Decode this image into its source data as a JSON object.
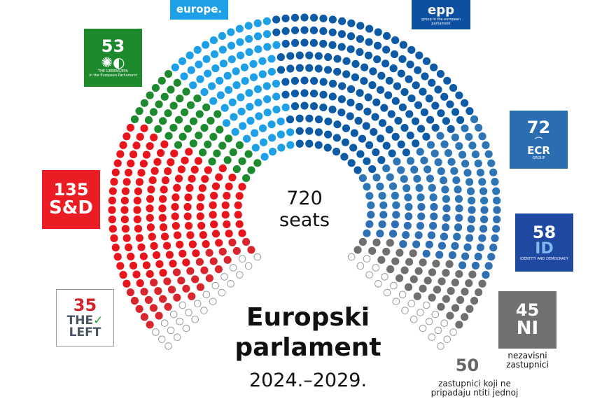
{
  "center": {
    "count": "720",
    "unit": "seats"
  },
  "title": {
    "line1": "Europski",
    "line2": "parlament",
    "years": "2024.–2029."
  },
  "labels": {
    "renew": {
      "text": "europe.",
      "color": "#1ea0e8"
    },
    "epp": {
      "text": "epp",
      "sub": "group in the european parliament",
      "color": "#0d4fa0"
    },
    "greens": {
      "count": "53",
      "text": "THE GREENS/EFA",
      "sub": "in the European Parliament",
      "color": "#1e8a2e"
    },
    "ecr": {
      "count": "72",
      "text": "ECR",
      "sub": "GROUP",
      "color": "#2a6db0"
    },
    "sd": {
      "count": "135",
      "text": "S&D",
      "color": "#ec1c24"
    },
    "id": {
      "count": "58",
      "text": "ID",
      "sub": "IDENTITY AND DEMOCRACY",
      "color": "#1f48a0"
    },
    "left": {
      "count": "35",
      "text1": "THE",
      "text2": "LEFT",
      "color": "#d2232a"
    },
    "ni": {
      "count": "45",
      "text": "NI",
      "desc1": "nezavisni",
      "desc2": "zastupnici",
      "color": "#707070"
    },
    "unaffiliated": {
      "count": "50",
      "desc1": "zastupnici koji ne",
      "desc2": "pripadaju ntiti jednoj"
    }
  },
  "chart_data": {
    "type": "parliament",
    "total": 720,
    "groups": [
      {
        "name": "unaffiliated",
        "seats": 25,
        "color": "#ffffff",
        "stroke": "#9a9a9a"
      },
      {
        "name": "The Left",
        "seats": 35,
        "color": "#d9262e"
      },
      {
        "name": "S&D",
        "seats": 135,
        "color": "#e8161c"
      },
      {
        "name": "Greens/EFA",
        "seats": 53,
        "color": "#1e8a2e"
      },
      {
        "name": "Renew Europe",
        "seats": 86,
        "color": "#1ea0e8"
      },
      {
        "name": "EPP",
        "seats": 186,
        "color": "#0d5ba6"
      },
      {
        "name": "ECR",
        "seats": 72,
        "color": "#2e75b6"
      },
      {
        "name": "ID",
        "seats": 58,
        "color": "#2f6fb3"
      },
      {
        "name": "NI",
        "seats": 45,
        "color": "#6f6f6f"
      },
      {
        "name": "unaffiliated",
        "seats": 25,
        "color": "#ffffff",
        "stroke": "#9a9a9a"
      }
    ]
  }
}
